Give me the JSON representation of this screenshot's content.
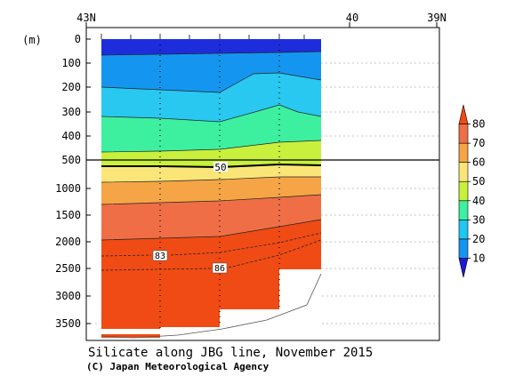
{
  "chart_data": {
    "type": "heatmap",
    "title": "Silicate along JBG line, November 2015",
    "credit": "(C) Japan Meteorological Agency",
    "ylabel": "(m)",
    "x_ticks": [
      "43N",
      "40",
      "39N"
    ],
    "y_ticks_upper": [
      "0",
      "100",
      "200",
      "300",
      "400",
      "500"
    ],
    "y_ticks_lower": [
      "1000",
      "1500",
      "2000",
      "2500",
      "3000",
      "3500"
    ],
    "upper_ylim": [
      0,
      500
    ],
    "lower_ylim": [
      500,
      3800
    ],
    "colorbar": {
      "labels": [
        "10",
        "20",
        "30",
        "40",
        "50",
        "60",
        "70",
        "80"
      ],
      "colors": [
        "#1a1ad6",
        "#1496f0",
        "#1ec8f0",
        "#3cf0a0",
        "#c8f03c",
        "#fae678",
        "#f5a546",
        "#f06e46",
        "#f04b14"
      ]
    },
    "contour_labels": [
      "50",
      "83",
      "86"
    ],
    "band_colors": [
      "#1e2ddc",
      "#1496f0",
      "#28c8f0",
      "#3cf0a0",
      "#c8f03c",
      "#fae678",
      "#f5a546",
      "#f06e46",
      "#f04b14"
    ]
  }
}
